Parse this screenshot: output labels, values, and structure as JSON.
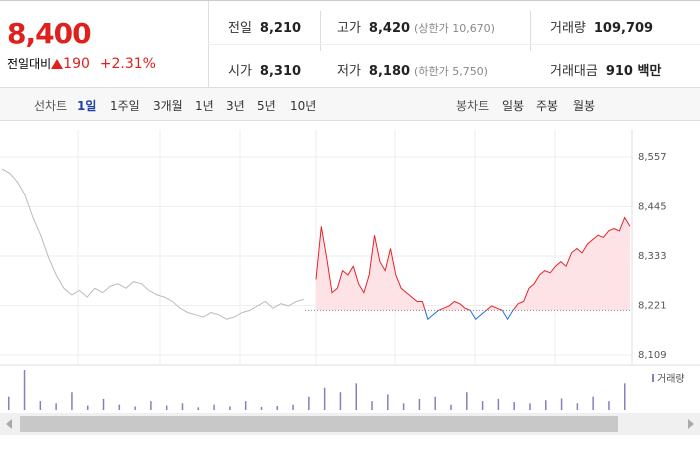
{
  "header": {
    "price": "8,400",
    "change_label": "전일대비",
    "change": "190",
    "change_pct": "+2.31%"
  },
  "table": {
    "rows": [
      [
        {
          "label": "전일",
          "value": "8,210"
        },
        {
          "label": "고가",
          "value": "8,420",
          "note": "(상한가 10,670)"
        },
        {
          "label": "거래량",
          "value": "109,709"
        }
      ],
      [
        {
          "label": "시가",
          "value": "8,310"
        },
        {
          "label": "저가",
          "value": "8,180",
          "note": "(하한가 5,750)"
        },
        {
          "label": "거래대금",
          "value": "910 백만"
        }
      ]
    ]
  },
  "toolbar": {
    "line_label": "선차트",
    "line_ranges": [
      "1일",
      "1주일",
      "3개월",
      "1년",
      "3년",
      "5년",
      "10년"
    ],
    "selected": "1일",
    "candle_label": "봉차트",
    "candle_ranges": [
      "일봉",
      "주봉",
      "월봉"
    ]
  },
  "chart_data": {
    "type": "line",
    "baseline": 8210,
    "ylim": [
      8109,
      8557
    ],
    "yticks": [
      {
        "value": 8109,
        "label": "8,109"
      },
      {
        "value": 8221,
        "label": "8,221"
      },
      {
        "value": 8333,
        "label": "8,333"
      },
      {
        "value": 8445,
        "label": "8,445"
      },
      {
        "value": 8557,
        "label": "8,557"
      }
    ],
    "grid": true,
    "series": [
      {
        "color": "#bbbbbb",
        "values": [
          8530,
          8520,
          8500,
          8470,
          8420,
          8380,
          8330,
          8290,
          8260,
          8245,
          8255,
          8240,
          8260,
          8250,
          8265,
          8270,
          8260,
          8275,
          8270,
          8255,
          8245,
          8240,
          8230,
          8215,
          8205,
          8200,
          8195,
          8205,
          8200,
          8190,
          8195,
          8205,
          8210,
          8220,
          8230,
          8215,
          8225,
          8220,
          8230,
          8235
        ]
      },
      {
        "color": "#e8232b",
        "below_color": "#1e6fd9",
        "values": [
          8280,
          8400,
          8330,
          8250,
          8260,
          8300,
          8290,
          8310,
          8270,
          8250,
          8290,
          8380,
          8320,
          8300,
          8350,
          8290,
          8260,
          8250,
          8240,
          8230,
          8230,
          8190,
          8200,
          8210,
          8215,
          8220,
          8230,
          8225,
          8215,
          8210,
          8190,
          8200,
          8210,
          8220,
          8215,
          8210,
          8190,
          8210,
          8225,
          8230,
          8260,
          8270,
          8290,
          8300,
          8295,
          8310,
          8320,
          8310,
          8340,
          8350,
          8340,
          8360,
          8370,
          8380,
          8375,
          8390,
          8395,
          8390,
          8420,
          8400
        ]
      }
    ],
    "volume": {
      "name": "거래량",
      "color": "#8c7bbf",
      "values": [
        3000,
        9000,
        2000,
        1500,
        4000,
        1000,
        2500,
        1200,
        800,
        2000,
        1000,
        1500,
        600,
        1200,
        800,
        2000,
        700,
        900,
        1200,
        3000,
        5000,
        4000,
        6000,
        2000,
        3500,
        1500,
        2500,
        3000,
        1200,
        4000,
        2000,
        2500,
        1800,
        1500,
        2200,
        2600,
        1500,
        3000,
        2000,
        6000
      ]
    }
  }
}
